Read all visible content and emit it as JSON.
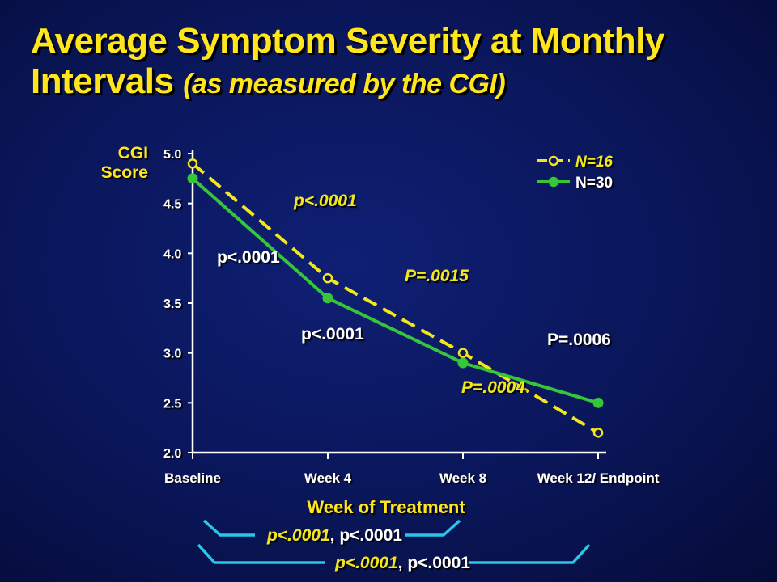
{
  "title": {
    "line1": "Average Symptom Severity at Monthly",
    "line2": "Intervals",
    "subtitle": "(as measured by the CGI)"
  },
  "chart_data": {
    "type": "line",
    "categories": [
      "Baseline",
      "Week 4",
      "Week 8",
      "Week 12/ Endpoint"
    ],
    "ylabel": [
      "CGI",
      "Score"
    ],
    "xlabel": "Week of Treatment",
    "ylim": [
      2.0,
      5.0
    ],
    "yticks": [
      "5.0",
      "4.5",
      "4.0",
      "3.5",
      "3.0",
      "2.5",
      "2.0"
    ],
    "series": [
      {
        "name": "N=16",
        "values": [
          4.9,
          3.75,
          3.0,
          2.2
        ],
        "color": "#f2e61c",
        "style": "dashed",
        "marker": "open-circle"
      },
      {
        "name": "N=30",
        "values": [
          4.75,
          3.55,
          2.9,
          2.5
        ],
        "color": "#35c63a",
        "style": "solid",
        "marker": "filled-circle"
      }
    ],
    "legend": "top-right",
    "annotations": [
      {
        "text": "p<.0001",
        "series": "N=16",
        "style": "italic",
        "color": "#f2e61c"
      },
      {
        "text": "p<.0001",
        "series": "N=30",
        "style": "bold",
        "color": "#ffffff"
      },
      {
        "text": "P=.0015",
        "series": "N=16",
        "style": "italic",
        "color": "#f2e61c"
      },
      {
        "text": "p<.0001",
        "series": "N=30",
        "style": "bold",
        "color": "#ffffff"
      },
      {
        "text": "P=.0004",
        "series": "N=16",
        "style": "italic",
        "color": "#f2e61c"
      },
      {
        "text": "P=.0006",
        "series": "N=30",
        "style": "bold",
        "color": "#ffffff"
      }
    ],
    "brackets": [
      {
        "from": "Baseline",
        "to": "Week 8",
        "labels": [
          {
            "text": "p<.0001",
            "color": "#f2e61c"
          },
          {
            "text": ", ",
            "color": "#ffffff"
          },
          {
            "text": "p<.0001",
            "color": "#ffffff"
          }
        ]
      },
      {
        "from": "Baseline",
        "to": "Week 12/ Endpoint",
        "labels": [
          {
            "text": "p<.0001",
            "color": "#f2e61c"
          },
          {
            "text": ", ",
            "color": "#ffffff"
          },
          {
            "text": "p<.0001",
            "color": "#ffffff"
          }
        ]
      }
    ]
  },
  "colors": {
    "title": "#ffe51c",
    "axis": "#ffffff",
    "bracket": "#29c6e8",
    "background": "#0a1659"
  }
}
